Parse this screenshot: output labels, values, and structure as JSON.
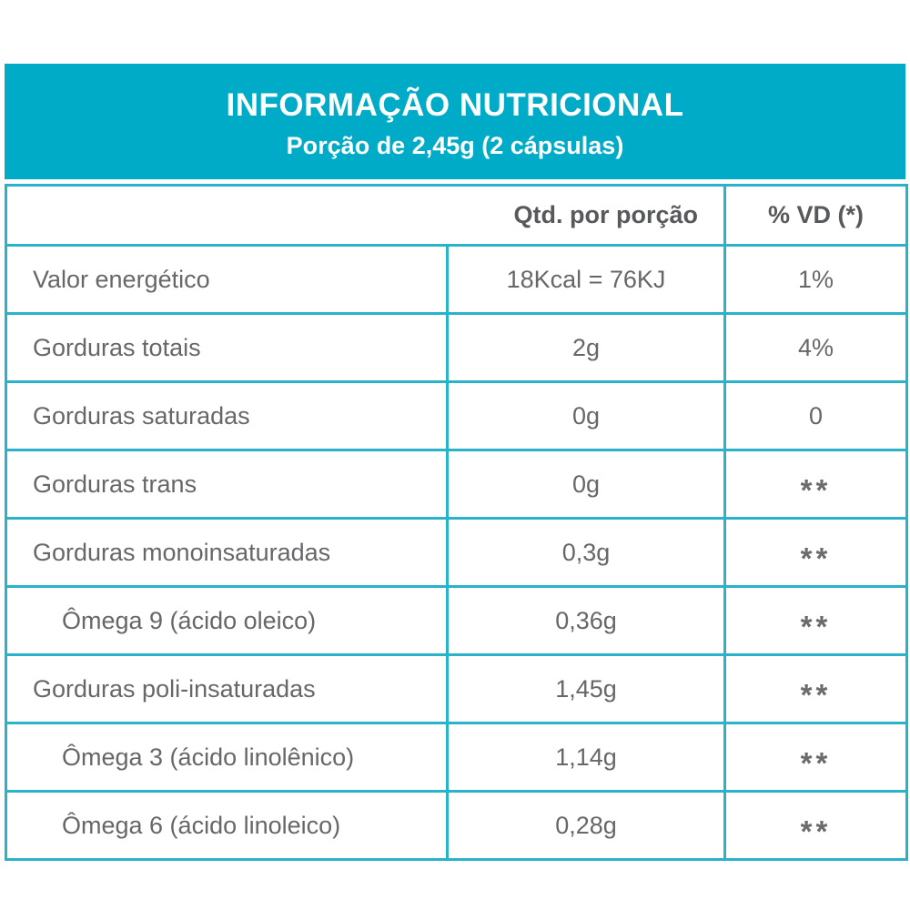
{
  "banner": {
    "title": "INFORMAÇÃO NUTRICIONAL",
    "subtitle": "Porção de 2,45g (2 cápsulas)"
  },
  "colors": {
    "accent_teal": "#00abc8",
    "border_teal": "#2ab2cb",
    "text_gray": "#666769",
    "header_text": "#ffffff"
  },
  "table": {
    "columns": {
      "qty": "Qtd. por porção",
      "vd": "% VD (*)"
    },
    "rows": [
      {
        "label": "Valor energético",
        "qty": "18Kcal = 76KJ",
        "vd": "1%"
      },
      {
        "label": "Gorduras totais",
        "qty": "2g",
        "vd": "4%"
      },
      {
        "label": "Gorduras saturadas",
        "qty": "0g",
        "vd": "0"
      },
      {
        "label": "Gorduras trans",
        "qty": "0g",
        "vd": "**"
      },
      {
        "label": "Gorduras monoinsaturadas",
        "qty": "0,3g",
        "vd": "**"
      },
      {
        "label": "Ômega 9 (ácido oleico)",
        "qty": "0,36g",
        "vd": "**"
      },
      {
        "label": "Gorduras poli-insaturadas",
        "qty": "1,45g",
        "vd": "**"
      },
      {
        "label": "Ômega 3 (ácido linolênico)",
        "qty": "1,14g",
        "vd": "**"
      },
      {
        "label": "Ômega 6 (ácido linoleico)",
        "qty": "0,28g",
        "vd": "**"
      }
    ]
  }
}
